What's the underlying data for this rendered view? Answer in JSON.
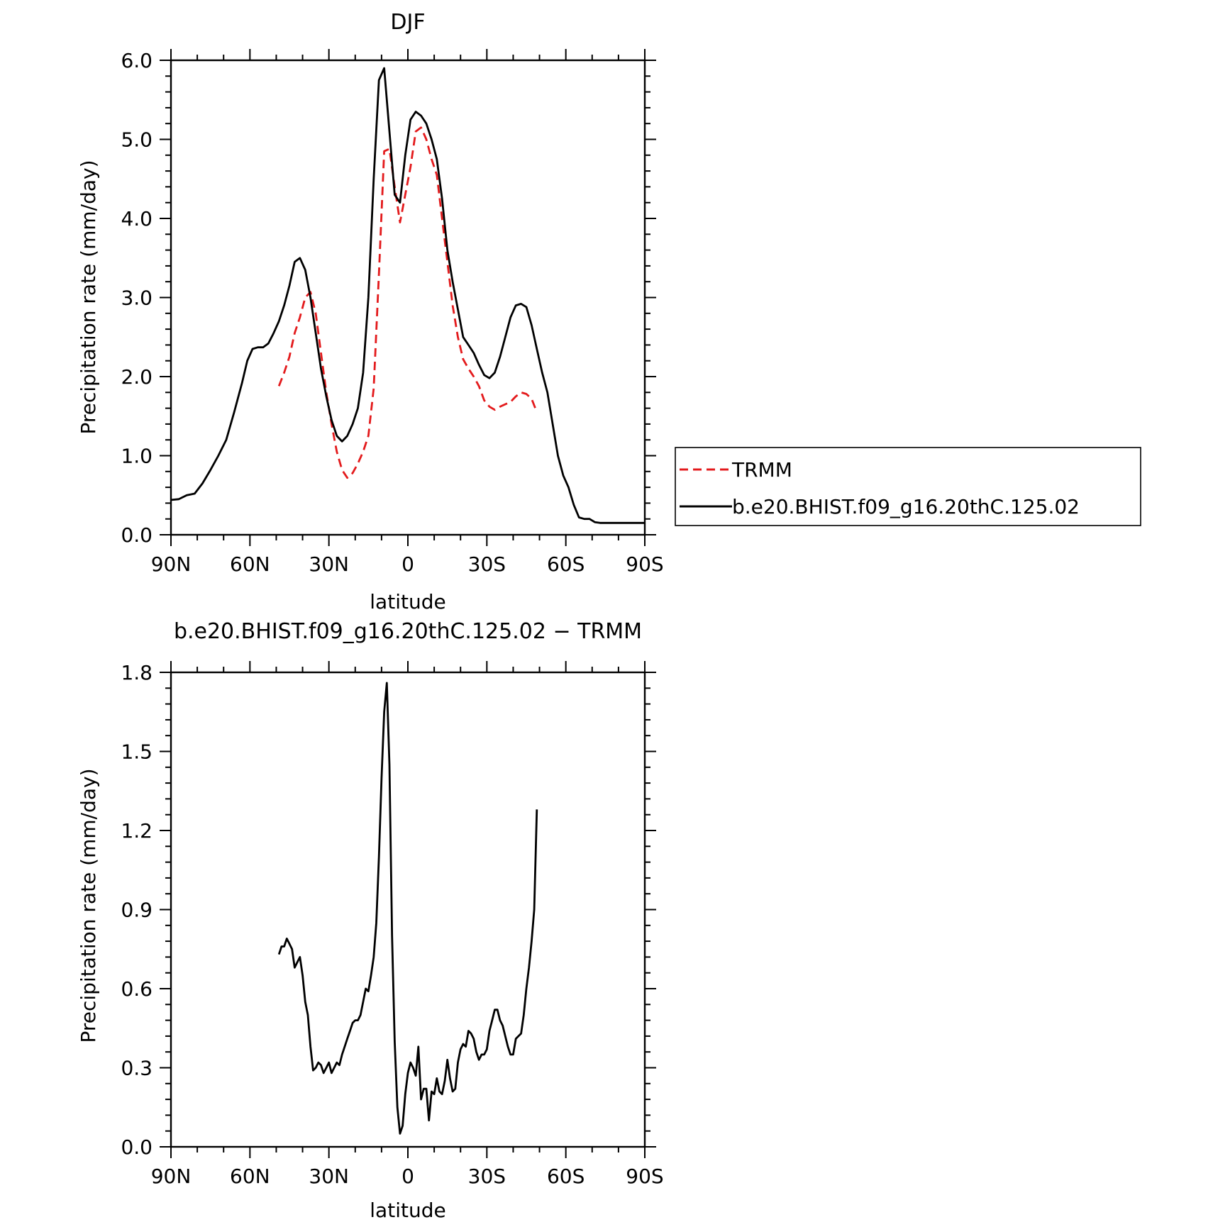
{
  "colors": {
    "model": "#000000",
    "obs": "#e31a1c",
    "axes": "#000000"
  },
  "chart_data": [
    {
      "type": "line",
      "title": "DJF",
      "xlabel": "latitude",
      "ylabel": "Precipitation rate (mm/day)",
      "xlim": [
        -90,
        90
      ],
      "ylim": [
        0,
        6
      ],
      "x_direction": "reversed",
      "xticks": [
        -90,
        -60,
        -30,
        0,
        30,
        60,
        90
      ],
      "xtick_labels": [
        "90N",
        "60N",
        "30N",
        "0",
        "30S",
        "60S",
        "90S"
      ],
      "yticks": [
        0,
        1,
        2,
        3,
        4,
        5,
        6
      ],
      "ytick_labels": [
        "0.0",
        "1.0",
        "2.0",
        "3.0",
        "4.0",
        "5.0",
        "6.0"
      ],
      "legend": {
        "placement": "right",
        "entries": [
          "TRMM",
          "b.e20.BHIST.f09_g16.20thC.125.02"
        ]
      },
      "series": [
        {
          "name": "TRMM",
          "style": "dashed",
          "color": "#e31a1c",
          "x": [
            -49,
            -47,
            -45,
            -43,
            -41,
            -39,
            -37,
            -35,
            -33,
            -31,
            -29,
            -27,
            -25,
            -23,
            -21,
            -19,
            -17,
            -15,
            -13,
            -11,
            -9,
            -7,
            -5,
            -3,
            -1,
            1,
            3,
            5,
            7,
            9,
            11,
            13,
            15,
            17,
            19,
            21,
            23,
            25,
            27,
            29,
            31,
            33,
            35,
            37,
            39,
            41,
            43,
            45,
            47,
            49
          ],
          "y": [
            1.88,
            2.05,
            2.25,
            2.55,
            2.75,
            3.0,
            3.07,
            2.8,
            2.3,
            1.8,
            1.4,
            1.05,
            0.82,
            0.72,
            0.78,
            0.9,
            1.05,
            1.25,
            1.85,
            3.3,
            4.85,
            4.88,
            4.4,
            3.95,
            4.3,
            4.65,
            5.1,
            5.15,
            5.0,
            4.75,
            4.55,
            4.0,
            3.45,
            2.9,
            2.5,
            2.22,
            2.1,
            2.0,
            1.88,
            1.7,
            1.62,
            1.58,
            1.62,
            1.65,
            1.68,
            1.75,
            1.8,
            1.78,
            1.72,
            1.55
          ]
        },
        {
          "name": "b.e20.BHIST.f09_g16.20thC.125.02",
          "style": "solid",
          "color": "#000000",
          "x": [
            -90,
            -87,
            -84,
            -81,
            -78,
            -75,
            -72,
            -69,
            -66,
            -63,
            -61,
            -59,
            -57,
            -55,
            -53,
            -51,
            -49,
            -47,
            -45,
            -43,
            -41,
            -39,
            -37,
            -35,
            -33,
            -31,
            -29,
            -27,
            -25,
            -23,
            -21,
            -19,
            -17,
            -15,
            -13,
            -11,
            -9,
            -7,
            -5,
            -3,
            -1,
            1,
            3,
            5,
            7,
            9,
            11,
            13,
            15,
            17,
            19,
            21,
            23,
            25,
            27,
            29,
            31,
            33,
            35,
            37,
            39,
            41,
            43,
            45,
            47,
            49,
            51,
            53,
            55,
            57,
            59,
            61,
            63,
            65,
            67,
            69,
            71,
            73,
            75,
            77,
            79,
            81,
            83,
            85,
            87,
            90
          ],
          "y": [
            0.44,
            0.45,
            0.5,
            0.52,
            0.65,
            0.82,
            1.0,
            1.2,
            1.55,
            1.92,
            2.2,
            2.35,
            2.37,
            2.37,
            2.42,
            2.55,
            2.7,
            2.9,
            3.15,
            3.45,
            3.5,
            3.35,
            3.0,
            2.55,
            2.1,
            1.75,
            1.45,
            1.25,
            1.18,
            1.25,
            1.4,
            1.6,
            2.05,
            3.0,
            4.5,
            5.75,
            5.9,
            5.1,
            4.3,
            4.2,
            4.8,
            5.25,
            5.35,
            5.3,
            5.2,
            5.0,
            4.75,
            4.25,
            3.6,
            3.2,
            2.85,
            2.5,
            2.4,
            2.3,
            2.15,
            2.02,
            1.98,
            2.05,
            2.25,
            2.5,
            2.75,
            2.9,
            2.92,
            2.88,
            2.65,
            2.35,
            2.05,
            1.8,
            1.4,
            1.0,
            0.75,
            0.6,
            0.38,
            0.22,
            0.2,
            0.2,
            0.16,
            0.15,
            0.15,
            0.15,
            0.15,
            0.15,
            0.15,
            0.15,
            0.15,
            0.15
          ]
        }
      ]
    },
    {
      "type": "line",
      "title": "b.e20.BHIST.f09_g16.20thC.125.02 − TRMM",
      "xlabel": "latitude",
      "ylabel": "Precipitation rate (mm/day)",
      "xlim": [
        -90,
        90
      ],
      "ylim": [
        0,
        1.8
      ],
      "x_direction": "reversed",
      "xticks": [
        -90,
        -60,
        -30,
        0,
        30,
        60,
        90
      ],
      "xtick_labels": [
        "90N",
        "60N",
        "30N",
        "0",
        "30S",
        "60S",
        "90S"
      ],
      "yticks": [
        0,
        0.3,
        0.6,
        0.9,
        1.2,
        1.5,
        1.8
      ],
      "ytick_labels": [
        "0.0",
        "0.3",
        "0.6",
        "0.9",
        "1.2",
        "1.5",
        "1.8"
      ],
      "series": [
        {
          "style": "solid",
          "color": "#000000",
          "x": [
            -49,
            -48,
            -47,
            -46,
            -45,
            -44,
            -43,
            -42,
            -41,
            -40,
            -39,
            -38,
            -37,
            -36,
            -35,
            -34,
            -33,
            -32,
            -31,
            -30,
            -29,
            -28,
            -27,
            -26,
            -25,
            -24,
            -23,
            -22,
            -21,
            -20,
            -19,
            -18,
            -17,
            -16,
            -15,
            -14,
            -13,
            -12,
            -11,
            -10,
            -9,
            -8,
            -7,
            -6,
            -5,
            -4,
            -3,
            -2,
            -1,
            0,
            1,
            2,
            3,
            4,
            5,
            6,
            7,
            8,
            9,
            10,
            11,
            12,
            13,
            14,
            15,
            16,
            17,
            18,
            19,
            20,
            21,
            22,
            23,
            24,
            25,
            26,
            27,
            28,
            29,
            30,
            31,
            32,
            33,
            34,
            35,
            36,
            37,
            38,
            39,
            40,
            41,
            42,
            43,
            44,
            45,
            46,
            47,
            48,
            49
          ],
          "y": [
            0.73,
            0.76,
            0.76,
            0.79,
            0.77,
            0.75,
            0.68,
            0.7,
            0.72,
            0.65,
            0.55,
            0.5,
            0.38,
            0.29,
            0.3,
            0.32,
            0.31,
            0.28,
            0.3,
            0.32,
            0.28,
            0.3,
            0.32,
            0.31,
            0.35,
            0.38,
            0.41,
            0.44,
            0.47,
            0.48,
            0.48,
            0.5,
            0.55,
            0.6,
            0.59,
            0.65,
            0.72,
            0.85,
            1.1,
            1.4,
            1.65,
            1.76,
            1.45,
            0.8,
            0.4,
            0.15,
            0.05,
            0.08,
            0.2,
            0.28,
            0.32,
            0.3,
            0.27,
            0.38,
            0.18,
            0.22,
            0.22,
            0.1,
            0.21,
            0.2,
            0.26,
            0.21,
            0.2,
            0.25,
            0.33,
            0.26,
            0.21,
            0.22,
            0.32,
            0.37,
            0.39,
            0.38,
            0.44,
            0.43,
            0.41,
            0.36,
            0.33,
            0.35,
            0.35,
            0.37,
            0.44,
            0.48,
            0.52,
            0.52,
            0.48,
            0.46,
            0.42,
            0.38,
            0.35,
            0.35,
            0.41,
            0.42,
            0.43,
            0.5,
            0.6,
            0.68,
            0.78,
            0.9,
            1.28
          ]
        }
      ]
    }
  ]
}
